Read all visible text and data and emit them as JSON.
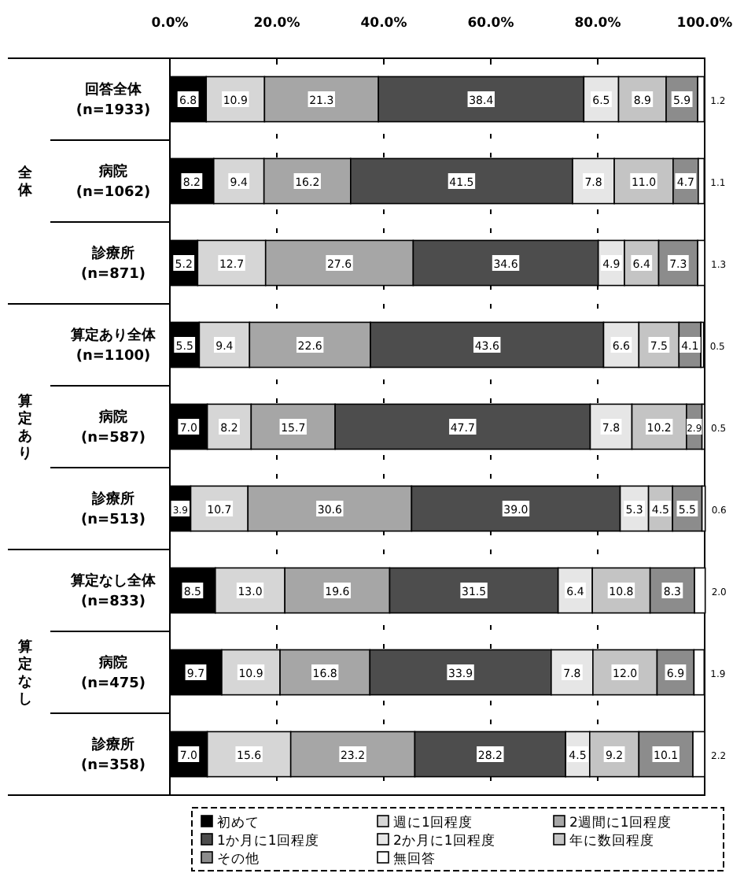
{
  "chart_data": {
    "type": "bar",
    "orientation": "horizontal",
    "stacked": true,
    "grid": "x",
    "legend": "bottom",
    "categories": [
      "回答全体 (n=1933)",
      "病院 (n=1062)",
      "診療所 (n=871)",
      "算定あり全体 (n=1100)",
      "病院 (n=587)",
      "診療所 (n=513)",
      "算定なし全体 (n=833)",
      "病院 (n=475)",
      "診療所 (n=358)"
    ],
    "annotations": [
      "全体",
      "算定あり",
      "算定なし"
    ],
    "xlim": [
      0,
      100
    ],
    "xticks": [
      {
        "value": 0,
        "label": "0.0%"
      },
      {
        "value": 20,
        "label": "20.0%"
      },
      {
        "value": 40,
        "label": "40.0%"
      },
      {
        "value": 60,
        "label": "60.0%"
      },
      {
        "value": 80,
        "label": "80.0%"
      },
      {
        "value": 100,
        "label": "100.0%"
      }
    ],
    "series": [
      {
        "name": "初めて",
        "color": "#000000",
        "values": [
          6.8,
          8.2,
          5.2,
          5.5,
          7.0,
          3.9,
          8.5,
          9.7,
          7.0
        ],
        "value_labels": [
          "6.8",
          "8.2",
          "5.2",
          "5.5",
          "7.0",
          "3.9",
          "8.5",
          "9.7",
          "7.0"
        ]
      },
      {
        "name": "週に1回程度",
        "color": "#d6d6d6",
        "values": [
          10.9,
          9.4,
          12.7,
          9.4,
          8.2,
          10.7,
          13.0,
          10.9,
          15.6
        ],
        "value_labels": [
          "10.9",
          "9.4",
          "12.7",
          "9.4",
          "8.2",
          "10.7",
          "13.0",
          "10.9",
          "15.6"
        ]
      },
      {
        "name": "2週間に1回程度",
        "color": "#a6a6a6",
        "values": [
          21.3,
          16.2,
          27.6,
          22.6,
          15.7,
          30.6,
          19.6,
          16.8,
          23.2
        ],
        "value_labels": [
          "21.3",
          "16.2",
          "27.6",
          "22.6",
          "15.7",
          "30.6",
          "19.6",
          "16.8",
          "23.2"
        ]
      },
      {
        "name": "1か月に1回程度",
        "color": "#4d4d4d",
        "values": [
          38.4,
          41.5,
          34.6,
          43.6,
          47.7,
          39.0,
          31.5,
          33.9,
          28.2
        ],
        "value_labels": [
          "38.4",
          "41.5",
          "34.6",
          "43.6",
          "47.7",
          "39.0",
          "31.5",
          "33.9",
          "28.2"
        ]
      },
      {
        "name": "2か月に1回程度",
        "color": "#e6e6e6",
        "values": [
          6.5,
          7.8,
          4.9,
          6.6,
          7.8,
          5.3,
          6.4,
          7.8,
          4.5
        ],
        "value_labels": [
          "6.5",
          "7.8",
          "4.9",
          "6.6",
          "7.8",
          "5.3",
          "6.4",
          "7.8",
          "4.5"
        ]
      },
      {
        "name": "年に数回程度",
        "color": "#c4c4c4",
        "values": [
          8.9,
          11.0,
          6.4,
          7.5,
          10.2,
          4.5,
          10.8,
          12.0,
          9.2
        ],
        "value_labels": [
          "8.9",
          "11.0",
          "6.4",
          "7.5",
          "10.2",
          "4.5",
          "10.8",
          "12.0",
          "9.2"
        ]
      },
      {
        "name": "その他",
        "color": "#8c8c8c",
        "values": [
          5.9,
          4.7,
          7.3,
          4.1,
          2.9,
          5.5,
          8.3,
          6.9,
          10.1
        ],
        "value_labels": [
          "5.9",
          "4.7",
          "7.3",
          "4.1",
          "2.9",
          "5.5",
          "8.3",
          "6.9",
          "10.1"
        ]
      },
      {
        "name": "無回答",
        "color": "#ffffff",
        "values": [
          1.2,
          1.1,
          1.3,
          0.5,
          0.5,
          0.6,
          2.0,
          1.9,
          2.2
        ],
        "value_labels": [
          "1.2",
          "1.1",
          "1.3",
          "0.5",
          "0.5",
          "0.6",
          "2.0",
          "1.9",
          "2.2"
        ]
      }
    ]
  }
}
